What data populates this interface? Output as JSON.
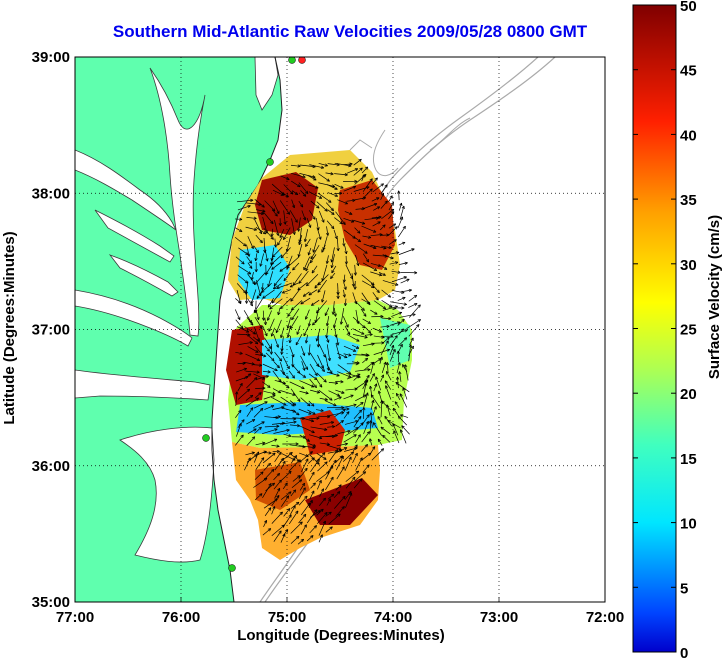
{
  "title": "Southern Mid-Atlantic Raw Velocities 2009/05/28 0800 GMT",
  "x_axis": {
    "label": "Longitude (Degrees:Minutes)",
    "ticks": [
      "77:00",
      "76:00",
      "75:00",
      "74:00",
      "73:00",
      "72:00"
    ]
  },
  "y_axis": {
    "label": "Latitude (Degrees:Minutes)",
    "ticks": [
      "39:00",
      "38:00",
      "37:00",
      "36:00",
      "35:00"
    ]
  },
  "colorbar": {
    "label": "Surface Velocity (cm/s)",
    "ticks": [
      "50",
      "45",
      "40",
      "35",
      "30",
      "25",
      "20",
      "15",
      "10",
      "5",
      "0"
    ],
    "min": 0,
    "max": 50,
    "colormap": "jet"
  },
  "colors": {
    "land": "#5fffae",
    "title": "#0000ee",
    "shelf_contour": "#aaaaaa",
    "station_marker_green": "#22cc22",
    "station_marker_red": "#ff2222"
  },
  "grid": "dotted"
}
